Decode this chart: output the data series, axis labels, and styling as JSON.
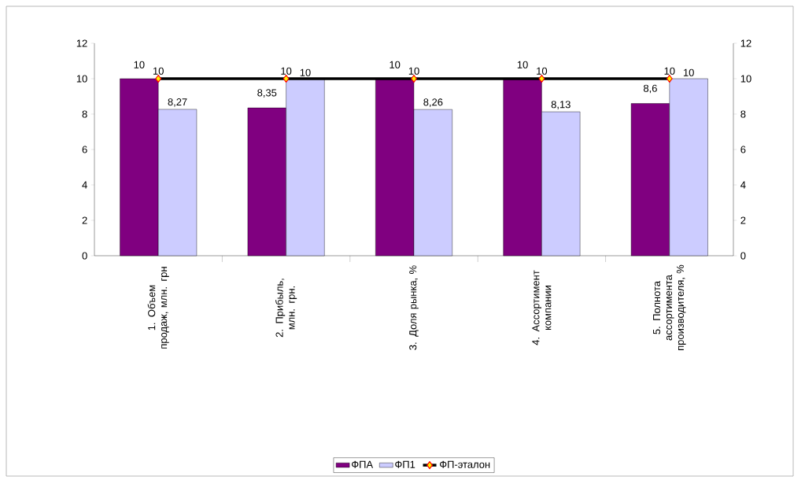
{
  "chart_data": {
    "type": "bar",
    "categories": [
      "1. Объем продаж, млн. грн",
      "2. Прибыль, млн. грн.",
      "3. Доля рынка, %",
      "4. Ассортимент компании",
      "5. Полнота ассортимента производителя, %"
    ],
    "series": [
      {
        "name": "ФПА",
        "color": "#800080",
        "values": [
          10,
          8.35,
          10,
          10,
          8.6
        ],
        "value_labels": [
          "10",
          "8,35",
          "10",
          "10",
          "8,6"
        ]
      },
      {
        "name": "ФП1",
        "color": "#ccccff",
        "values": [
          8.27,
          10,
          8.26,
          8.13,
          10
        ],
        "value_labels": [
          "8,27",
          "10",
          "8,26",
          "8,13",
          "10"
        ]
      },
      {
        "name": "ФП-эталон",
        "type": "line",
        "axis": "y2",
        "color": "#000000",
        "marker": "diamond",
        "values": [
          10,
          10,
          10,
          10,
          10
        ],
        "value_labels": [
          "10",
          "10",
          "10",
          "10",
          "10"
        ]
      }
    ],
    "ylim": [
      0,
      12
    ],
    "yticks": [
      0,
      2,
      4,
      6,
      8,
      10,
      12
    ],
    "y2lim": [
      0,
      12
    ],
    "y2ticks": [
      0,
      2,
      4,
      6,
      8,
      10,
      12
    ],
    "legend": "bottom"
  }
}
